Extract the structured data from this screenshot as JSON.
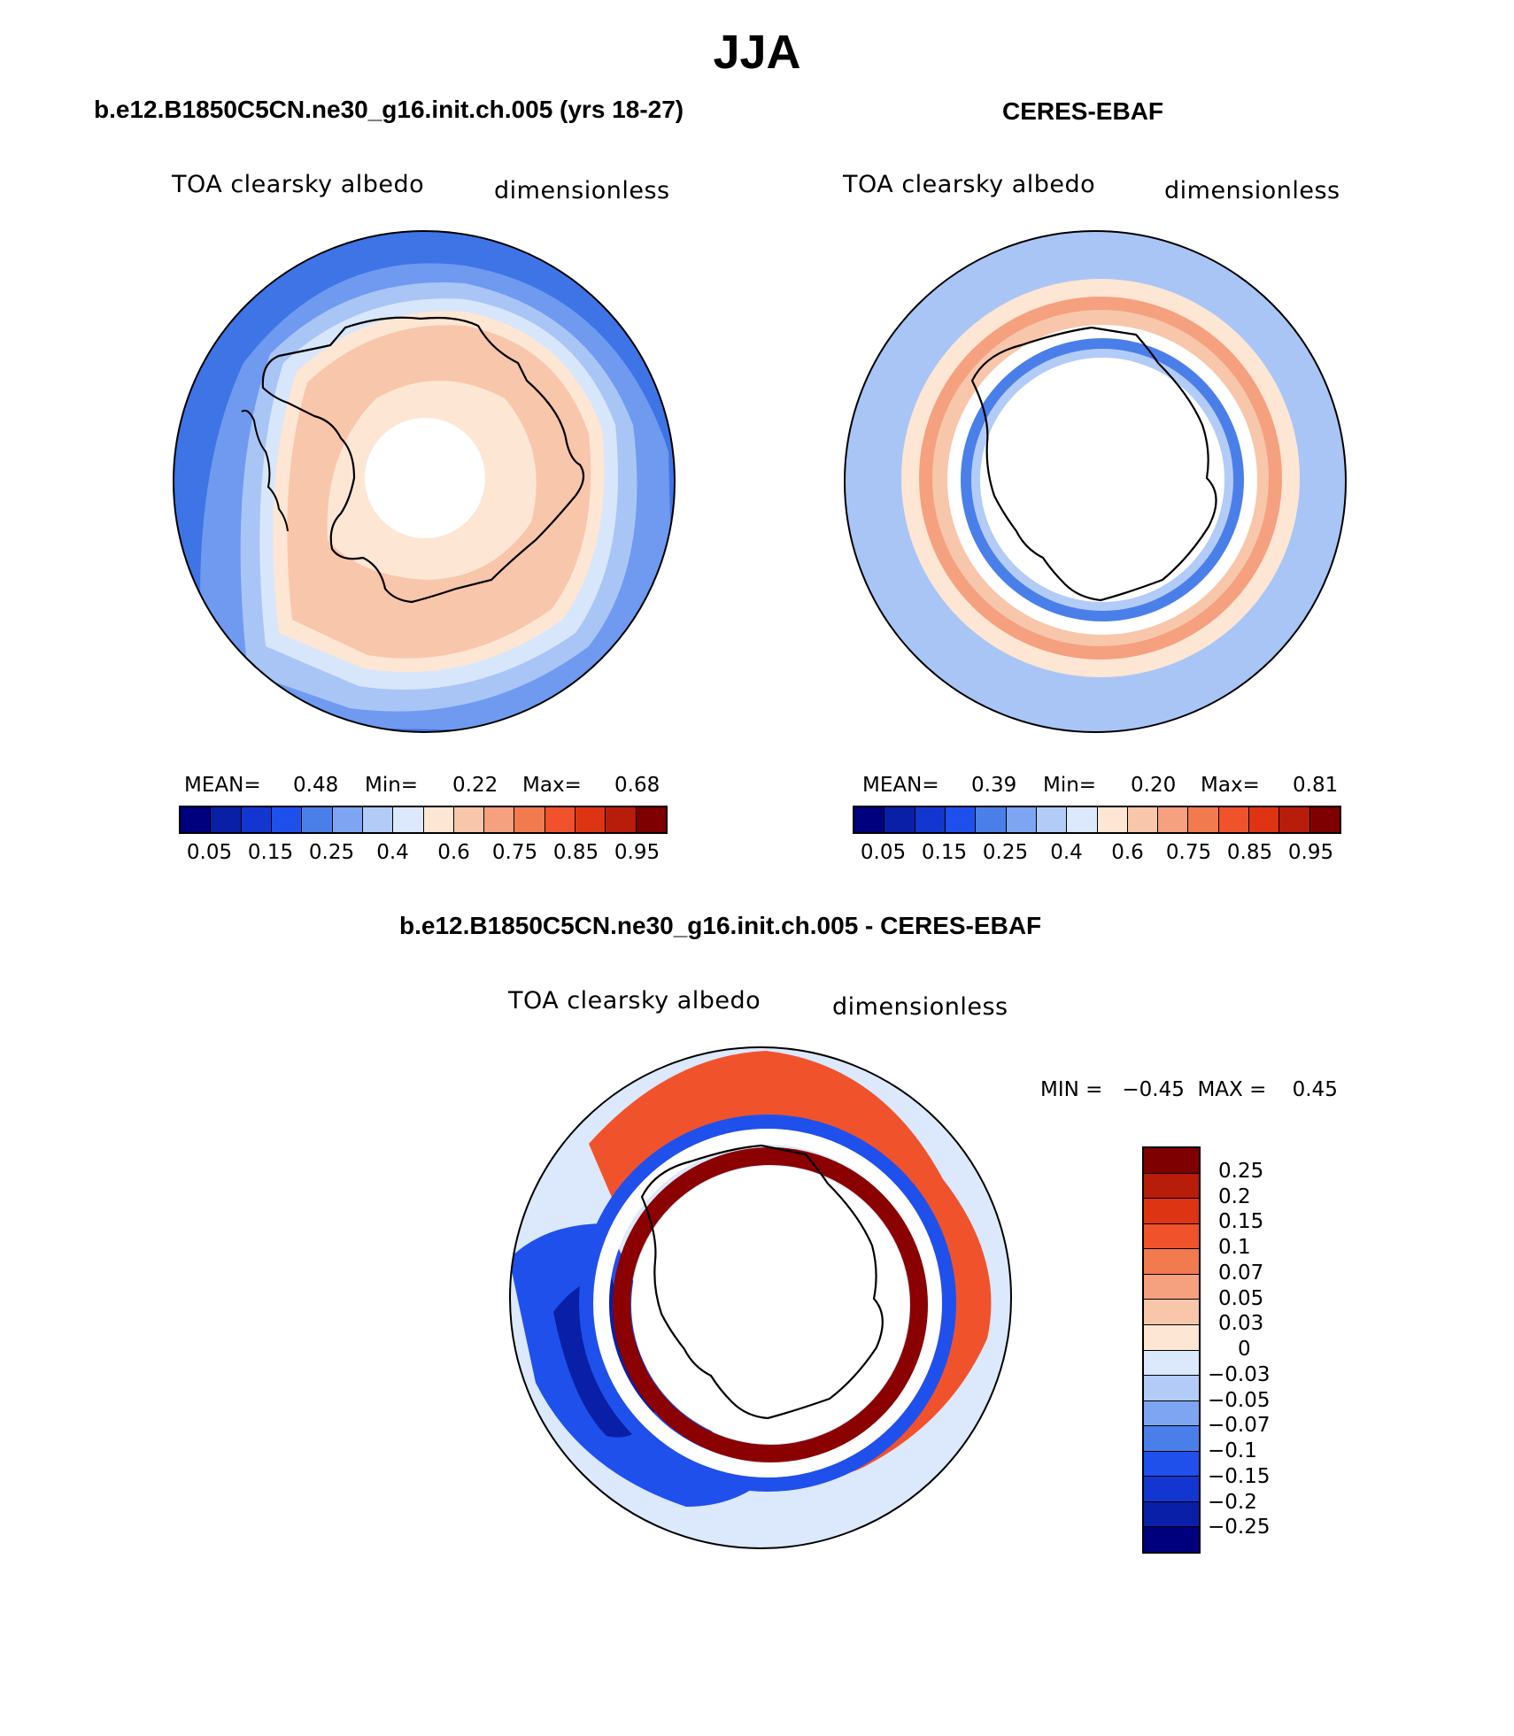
{
  "title": "JJA",
  "panels": [
    {
      "title": "b.e12.B1850C5CN.ne30_g16.init.ch.005 (yrs 18-27)",
      "variable": "TOA clearsky albedo",
      "units": "dimensionless",
      "stats": {
        "mean_label": "MEAN=",
        "mean": "0.48",
        "min_label": "Min=",
        "min": "0.22",
        "max_label": "Max=",
        "max": "0.68"
      }
    },
    {
      "title": "CERES-EBAF",
      "variable": "TOA clearsky albedo",
      "units": "dimensionless",
      "stats": {
        "mean_label": "MEAN=",
        "mean": "0.39",
        "min_label": "Min=",
        "min": "0.20",
        "max_label": "Max=",
        "max": "0.81"
      }
    }
  ],
  "diff_panel": {
    "title": "b.e12.B1850C5CN.ne30_g16.init.ch.005 - CERES-EBAF",
    "variable": "TOA clearsky albedo",
    "units": "dimensionless",
    "minmax": "MIN =   −0.45  MAX =    0.45"
  },
  "colorbar_main": {
    "colors": [
      "#00007f",
      "#0a1fa8",
      "#1336d0",
      "#1f50ec",
      "#4a7fe9",
      "#7ea5f1",
      "#b2ccf7",
      "#dce8fb",
      "#fde6d4",
      "#f8c6ab",
      "#f5a07f",
      "#f27a4f",
      "#f0532c",
      "#dd3413",
      "#b81c0a",
      "#7f0000"
    ],
    "ticks": [
      "0.05",
      "0.15",
      "0.25",
      "0.4",
      "0.6",
      "0.75",
      "0.85",
      "0.95"
    ]
  },
  "colorbar_diff": {
    "colors": [
      "#7f0000",
      "#b81c0a",
      "#dd3413",
      "#f0532c",
      "#f27a4f",
      "#f5a07f",
      "#f8c6ab",
      "#fde6d4",
      "#dce8fb",
      "#b2ccf7",
      "#7ea5f1",
      "#4a7fe9",
      "#1f50ec",
      "#1336d0",
      "#0a1fa8",
      "#00007f"
    ],
    "ticks": [
      "0.25",
      "0.2",
      "0.15",
      "0.1",
      "0.07",
      "0.05",
      "0.03",
      "0",
      "−0.03",
      "−0.05",
      "−0.07",
      "−0.1",
      "−0.15",
      "−0.2",
      "−0.25"
    ]
  },
  "fills": {
    "ocean_deep": "#3f74e6",
    "ocean_mid": "#6f9af0",
    "ocean_light": "#a9c5f6",
    "ocean_pale": "#d8e6fb",
    "peach": "#f8c6ab",
    "peach_pale": "#fde6d4",
    "salmon": "#f5a07f",
    "orange": "#f0532c",
    "dark_red": "#8b0000",
    "blue_strong": "#1f50ec",
    "blue_dark": "#0a1fa8",
    "land": "#ffffff",
    "coast": "#000000"
  }
}
